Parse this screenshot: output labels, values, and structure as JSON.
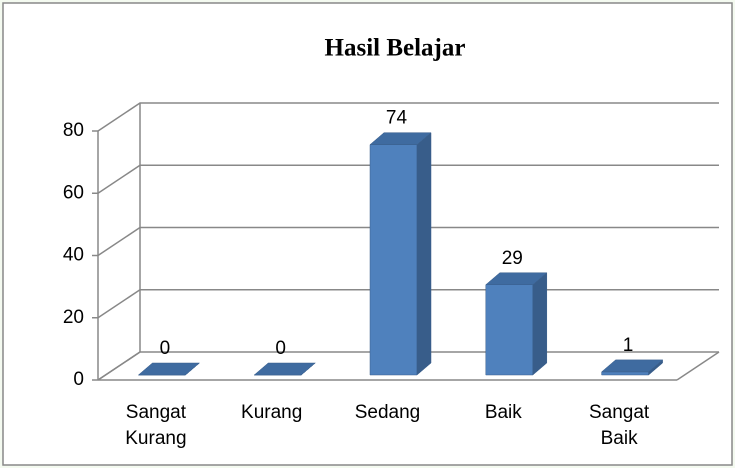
{
  "chart_data": {
    "type": "bar3d",
    "title": "Hasil Belajar",
    "categories": [
      "Sangat Kurang",
      "Kurang",
      "Sedang",
      "Baik",
      "Sangat Baik"
    ],
    "values": [
      0,
      0,
      74,
      29,
      1
    ],
    "color": "#4f81bd",
    "ylim": [
      0,
      80
    ],
    "yticks": [
      0,
      20,
      40,
      60,
      80
    ],
    "grid": true
  }
}
